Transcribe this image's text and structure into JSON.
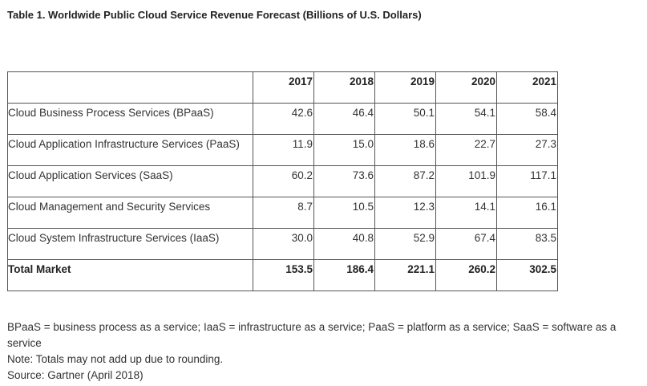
{
  "title": "Table 1. Worldwide Public Cloud Service Revenue Forecast (Billions of U.S. Dollars)",
  "table": {
    "years": [
      "2017",
      "2018",
      "2019",
      "2020",
      "2021"
    ],
    "rows": [
      {
        "label": "Cloud Business Process Services (BPaaS)",
        "values": [
          "42.6",
          "46.4",
          "50.1",
          "54.1",
          "58.4"
        ]
      },
      {
        "label": "Cloud Application Infrastructure Services (PaaS)",
        "values": [
          "11.9",
          "15.0",
          "18.6",
          "22.7",
          "27.3"
        ]
      },
      {
        "label": "Cloud Application Services (SaaS)",
        "values": [
          "60.2",
          "73.6",
          "87.2",
          "101.9",
          "117.1"
        ]
      },
      {
        "label": "Cloud Management and Security Services",
        "values": [
          "8.7",
          "10.5",
          "12.3",
          "14.1",
          "16.1"
        ]
      },
      {
        "label": "Cloud System Infrastructure Services (IaaS)",
        "values": [
          "30.0",
          "40.8",
          "52.9",
          "67.4",
          "83.5"
        ]
      }
    ],
    "total": {
      "label": "Total Market",
      "values": [
        "153.5",
        "186.4",
        "221.1",
        "260.2",
        "302.5"
      ]
    }
  },
  "notes": {
    "abbreviations": "BPaaS = business process as a service; IaaS = infrastructure as a service; PaaS = platform as a service; SaaS = software as a service",
    "rounding": "Note: Totals may not add up due to rounding.",
    "source": "Source: Gartner (April 2018)"
  }
}
